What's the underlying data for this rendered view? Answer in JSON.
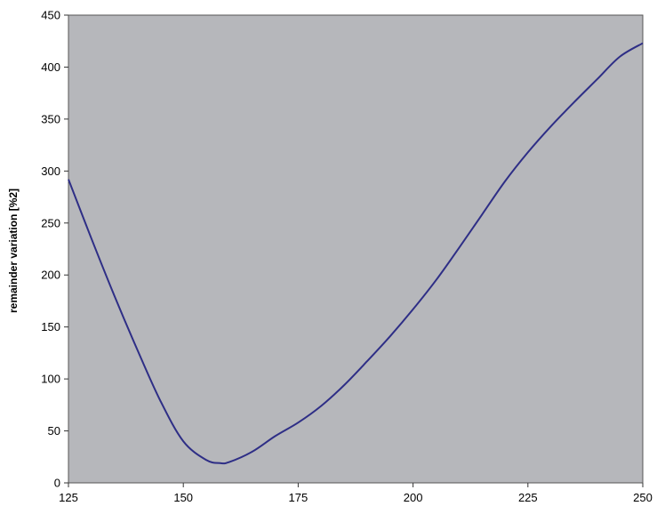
{
  "chart_data": {
    "type": "line",
    "title": "",
    "xlabel": "",
    "ylabel": "remainder variation [%2]",
    "xlim": [
      125,
      250
    ],
    "ylim": [
      0,
      450
    ],
    "x_ticks": [
      125,
      150,
      175,
      200,
      225,
      250
    ],
    "y_ticks": [
      0,
      50,
      100,
      150,
      200,
      250,
      300,
      350,
      400,
      450
    ],
    "grid": false,
    "legend": "none",
    "series": [
      {
        "color": "#2E2E86",
        "x": [
          125,
          130,
          135,
          140,
          145,
          150,
          155,
          158,
          160,
          165,
          170,
          175,
          180,
          185,
          190,
          195,
          200,
          205,
          210,
          215,
          220,
          225,
          230,
          235,
          240,
          245,
          250
        ],
        "y": [
          292,
          235,
          180,
          128,
          79,
          40,
          22,
          19,
          20,
          30,
          45,
          58,
          74,
          94,
          117,
          141,
          167,
          195,
          226,
          258,
          290,
          318,
          343,
          366,
          388,
          410,
          423
        ]
      }
    ],
    "colors": {
      "plot_background": "#B6B7BB",
      "frame": "#555555",
      "line": "#2E2E86"
    }
  }
}
